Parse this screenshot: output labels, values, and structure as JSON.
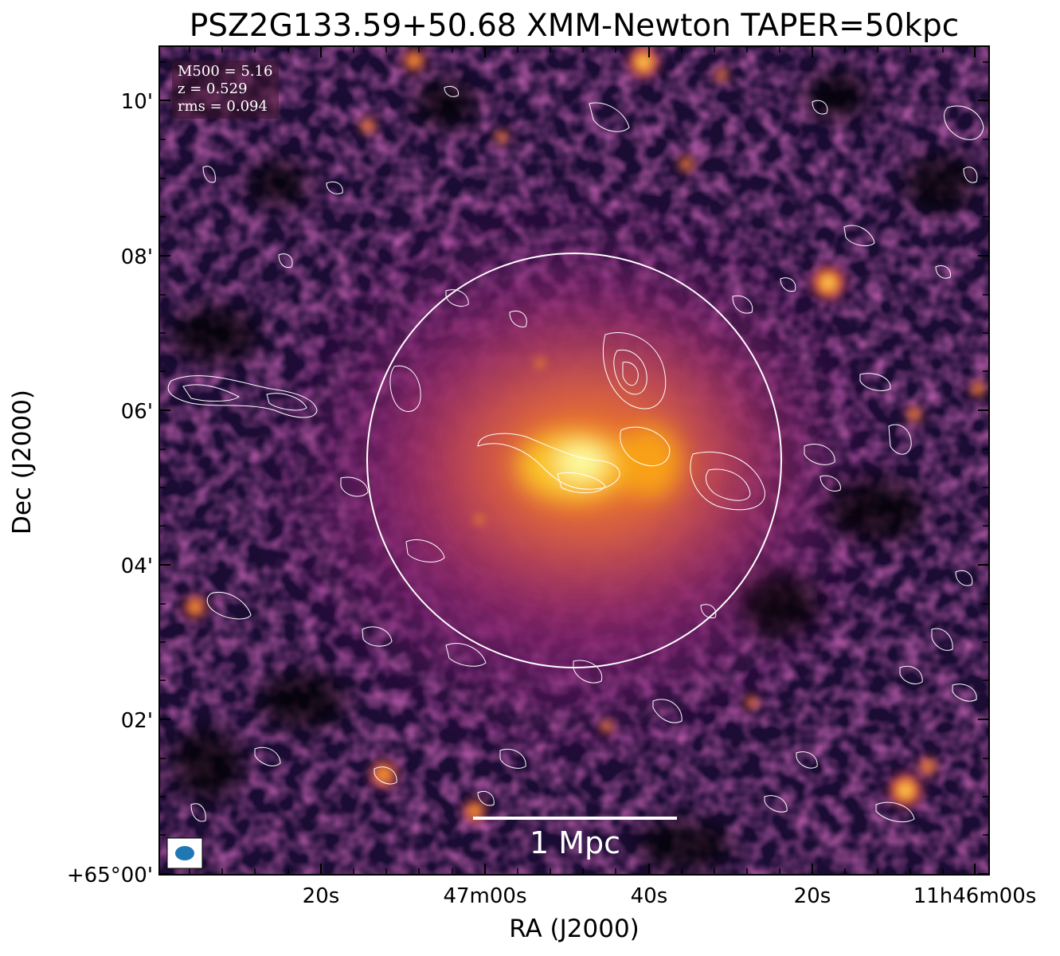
{
  "title": "PSZ2G133.59+50.68 XMM-Newton TAPER=50kpc",
  "axes": {
    "xlabel": "RA (J2000)",
    "ylabel": "Dec (J2000)",
    "xticks": [
      "20s",
      "47m00s",
      "40s",
      "20s",
      "11h46m00s"
    ],
    "yticks": [
      "10'",
      "08'",
      "06'",
      "04'",
      "02'",
      "+65°00'"
    ]
  },
  "info": {
    "m500": "M500 = 5.16",
    "z": "z = 0.529",
    "rms": "rms = 0.094"
  },
  "scalebar": {
    "label": "1 Mpc"
  },
  "beam": {
    "color": "#1f77b4"
  },
  "colormap": "inferno",
  "overlays": {
    "contour_color": "#ffffff",
    "circle_color": "#ffffff"
  }
}
